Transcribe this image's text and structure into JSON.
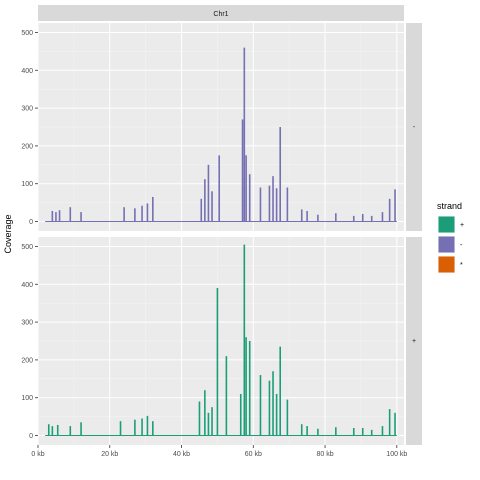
{
  "chart_data": {
    "type": "area",
    "facet_top": "Chr1",
    "ylabel": "Coverage",
    "xlim": [
      0,
      102000
    ],
    "ylim": [
      -25,
      525
    ],
    "x_ticks": [
      {
        "value": 0,
        "label": "0 kb"
      },
      {
        "value": 20000,
        "label": "20 kb"
      },
      {
        "value": 40000,
        "label": "40 kb"
      },
      {
        "value": 60000,
        "label": "60 kb"
      },
      {
        "value": 80000,
        "label": "80 kb"
      },
      {
        "value": 100000,
        "label": "100 kb"
      }
    ],
    "y_ticks": [
      0,
      100,
      200,
      300,
      400,
      500
    ],
    "grid": true,
    "legend": {
      "title": "strand",
      "position": "right",
      "entries": [
        {
          "label": "+",
          "color": "#1B9E77"
        },
        {
          "label": "-",
          "color": "#7570B3"
        },
        {
          "label": "*",
          "color": "#D95F02"
        }
      ]
    },
    "panels": [
      {
        "strip_label": "-",
        "color": "#7570B3",
        "x": [
          4000,
          5000,
          6000,
          9000,
          12000,
          24000,
          27000,
          29000,
          30500,
          32000,
          45500,
          46500,
          47500,
          48500,
          50500,
          57000,
          57500,
          58000,
          59000,
          62000,
          64500,
          65500,
          66500,
          67500,
          69500,
          73500,
          75000,
          78000,
          83000,
          88000,
          90500,
          93000,
          96000,
          98000,
          99500
        ],
        "y": [
          28,
          25,
          30,
          38,
          25,
          38,
          35,
          42,
          48,
          65,
          60,
          112,
          150,
          80,
          175,
          270,
          460,
          175,
          125,
          90,
          95,
          120,
          88,
          250,
          90,
          32,
          28,
          18,
          22,
          15,
          20,
          15,
          25,
          60,
          85
        ]
      },
      {
        "strip_label": "+",
        "color": "#1B9E77",
        "x": [
          3000,
          4000,
          5500,
          9000,
          12000,
          23000,
          27000,
          29000,
          30500,
          32000,
          45000,
          46500,
          47500,
          48500,
          50000,
          52500,
          56500,
          57500,
          58000,
          59000,
          62000,
          64500,
          65500,
          66500,
          67500,
          69500,
          73500,
          75000,
          78000,
          83000,
          88000,
          90500,
          93000,
          96000,
          98000,
          99500
        ],
        "y": [
          30,
          25,
          28,
          25,
          35,
          38,
          42,
          45,
          52,
          38,
          90,
          120,
          60,
          75,
          390,
          210,
          110,
          505,
          260,
          250,
          160,
          145,
          170,
          110,
          235,
          95,
          30,
          25,
          18,
          22,
          20,
          20,
          15,
          25,
          70,
          60
        ]
      }
    ]
  }
}
